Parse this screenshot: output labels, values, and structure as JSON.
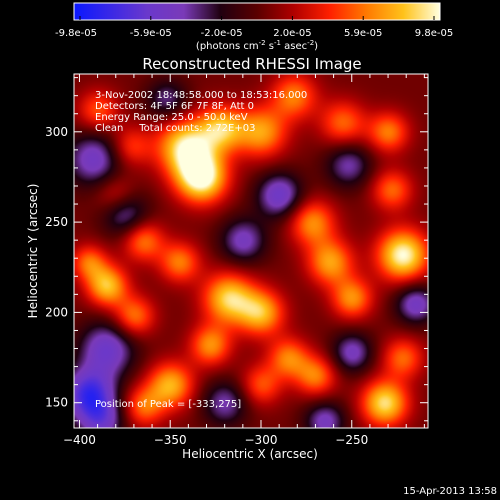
{
  "colorbar": {
    "tick_labels": [
      "-9.8e-05",
      "-5.9e-05",
      "-2.0e-05",
      "2.0e-05",
      "5.9e-05",
      "9.8e-05"
    ],
    "unit_label": "(photons cm",
    "unit_exp1": "-2",
    "unit_mid": " s",
    "unit_exp2": "-1",
    "unit_tail": " asec",
    "unit_exp3": "-2",
    "unit_close": ")",
    "stops": [
      "#0a18ff",
      "#3a28e6",
      "#6a38cc",
      "#7a3ab8",
      "#200010",
      "#5a0000",
      "#b00000",
      "#ff2000",
      "#ff7a00",
      "#ffc21a",
      "#ffffe0"
    ]
  },
  "chart_data": {
    "type": "heatmap",
    "title": "Reconstructed RHESSI Image",
    "xlabel": "Heliocentric X (arcsec)",
    "ylabel": "Heliocentric Y (arcsec)",
    "xlim": [
      -403,
      -208
    ],
    "ylim": [
      136,
      332
    ],
    "x_ticks": [
      -400,
      -350,
      -300,
      -250
    ],
    "y_ticks": [
      150,
      200,
      250,
      300
    ],
    "annotations": [
      "3-Nov-2002 18:48:58.000 to 18:53:16.000",
      "Detectors: 4F 5F 6F 7F 8F, Att 0",
      "Energy Range: 25.0 - 50.0 keV",
      "Clean     Total counts: 2.72E+03"
    ],
    "peak_label": "Position of Peak = [-333,275]",
    "peak": [
      -333,
      275
    ],
    "blobs": [
      {
        "x": -333,
        "y": 275,
        "v": 1.0,
        "s": 10
      },
      {
        "x": -342,
        "y": 292,
        "v": 0.85,
        "s": 11
      },
      {
        "x": -322,
        "y": 302,
        "v": 0.7,
        "s": 9
      },
      {
        "x": -300,
        "y": 300,
        "v": 0.65,
        "s": 10
      },
      {
        "x": -282,
        "y": 320,
        "v": 0.55,
        "s": 9
      },
      {
        "x": -255,
        "y": 305,
        "v": 0.5,
        "s": 9
      },
      {
        "x": -230,
        "y": 300,
        "v": 0.55,
        "s": 8
      },
      {
        "x": -390,
        "y": 312,
        "v": 0.45,
        "s": 8
      },
      {
        "x": -372,
        "y": 292,
        "v": 0.4,
        "s": 8
      },
      {
        "x": -365,
        "y": 240,
        "v": 0.55,
        "s": 8
      },
      {
        "x": -345,
        "y": 228,
        "v": 0.55,
        "s": 8
      },
      {
        "x": -318,
        "y": 208,
        "v": 0.8,
        "s": 10
      },
      {
        "x": -300,
        "y": 200,
        "v": 0.7,
        "s": 9
      },
      {
        "x": -328,
        "y": 182,
        "v": 0.6,
        "s": 8
      },
      {
        "x": -385,
        "y": 215,
        "v": 0.75,
        "s": 8
      },
      {
        "x": -395,
        "y": 228,
        "v": 0.5,
        "s": 7
      },
      {
        "x": -370,
        "y": 198,
        "v": 0.55,
        "s": 8
      },
      {
        "x": -350,
        "y": 160,
        "v": 0.7,
        "s": 9
      },
      {
        "x": -365,
        "y": 148,
        "v": 0.5,
        "s": 8
      },
      {
        "x": -272,
        "y": 250,
        "v": 0.6,
        "s": 9
      },
      {
        "x": -262,
        "y": 228,
        "v": 0.65,
        "s": 9
      },
      {
        "x": -250,
        "y": 208,
        "v": 0.6,
        "s": 8
      },
      {
        "x": -222,
        "y": 232,
        "v": 0.95,
        "s": 10
      },
      {
        "x": -228,
        "y": 268,
        "v": 0.5,
        "s": 8
      },
      {
        "x": -285,
        "y": 175,
        "v": 0.55,
        "s": 8
      },
      {
        "x": -270,
        "y": 165,
        "v": 0.55,
        "s": 8
      },
      {
        "x": -232,
        "y": 150,
        "v": 0.85,
        "s": 9
      },
      {
        "x": -222,
        "y": 175,
        "v": 0.5,
        "s": 8
      },
      {
        "x": -300,
        "y": 160,
        "v": 0.45,
        "s": 8
      },
      {
        "x": -380,
        "y": 265,
        "v": 0.35,
        "s": 8
      },
      {
        "x": -392,
        "y": 285,
        "v": -0.55,
        "s": 11
      },
      {
        "x": -375,
        "y": 255,
        "v": -0.5,
        "s": 9
      },
      {
        "x": -385,
        "y": 180,
        "v": -0.6,
        "s": 11
      },
      {
        "x": -395,
        "y": 155,
        "v": -0.8,
        "s": 10
      },
      {
        "x": -388,
        "y": 140,
        "v": -0.5,
        "s": 9
      },
      {
        "x": -290,
        "y": 265,
        "v": -0.6,
        "s": 9
      },
      {
        "x": -310,
        "y": 240,
        "v": -0.5,
        "s": 9
      },
      {
        "x": -252,
        "y": 282,
        "v": -0.45,
        "s": 9
      },
      {
        "x": -250,
        "y": 178,
        "v": -0.5,
        "s": 8
      },
      {
        "x": -320,
        "y": 150,
        "v": -0.45,
        "s": 9
      },
      {
        "x": -215,
        "y": 205,
        "v": -0.55,
        "s": 8
      },
      {
        "x": -352,
        "y": 318,
        "v": -0.4,
        "s": 8
      },
      {
        "x": -265,
        "y": 140,
        "v": -0.5,
        "s": 8
      }
    ]
  },
  "footer": {
    "date": "15-Apr-2013 13:58"
  }
}
